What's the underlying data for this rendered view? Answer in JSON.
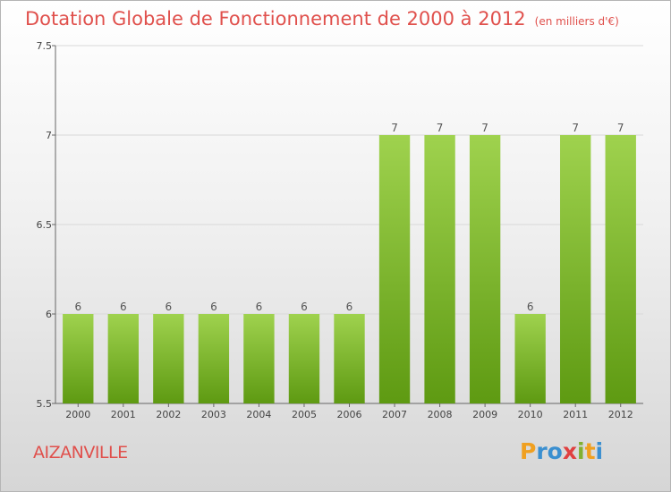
{
  "header": {
    "title": "Dotation Globale de Fonctionnement de 2000 à 2012",
    "unit": "(en milliers d'€)"
  },
  "footer": {
    "commune": "AIZANVILLE",
    "logo": [
      "P",
      "r",
      "o",
      "x",
      "i",
      "t",
      "i"
    ]
  },
  "colors": {
    "title": "#e0504c",
    "bar_top": "#9fd24e",
    "bar_bottom": "#5e9a12"
  },
  "chart_data": {
    "type": "bar",
    "title": "Dotation Globale de Fonctionnement de 2000 à 2012",
    "subtitle": "(en milliers d'€)",
    "categories": [
      "2000",
      "2001",
      "2002",
      "2003",
      "2004",
      "2005",
      "2006",
      "2007",
      "2008",
      "2009",
      "2010",
      "2011",
      "2012"
    ],
    "values": [
      6,
      6,
      6,
      6,
      6,
      6,
      6,
      7,
      7,
      7,
      6,
      7,
      7
    ],
    "data_labels": [
      "6",
      "6",
      "6",
      "6",
      "6",
      "6",
      "6",
      "7",
      "7",
      "7",
      "6",
      "7",
      "7"
    ],
    "ylim": [
      5.5,
      7.5
    ],
    "yticks": [
      5.5,
      6,
      6.5,
      7,
      7.5
    ],
    "ytick_labels": [
      "5.5",
      "6",
      "6.5",
      "7",
      "7.5"
    ],
    "grid": true,
    "xlabel": "",
    "ylabel": ""
  }
}
